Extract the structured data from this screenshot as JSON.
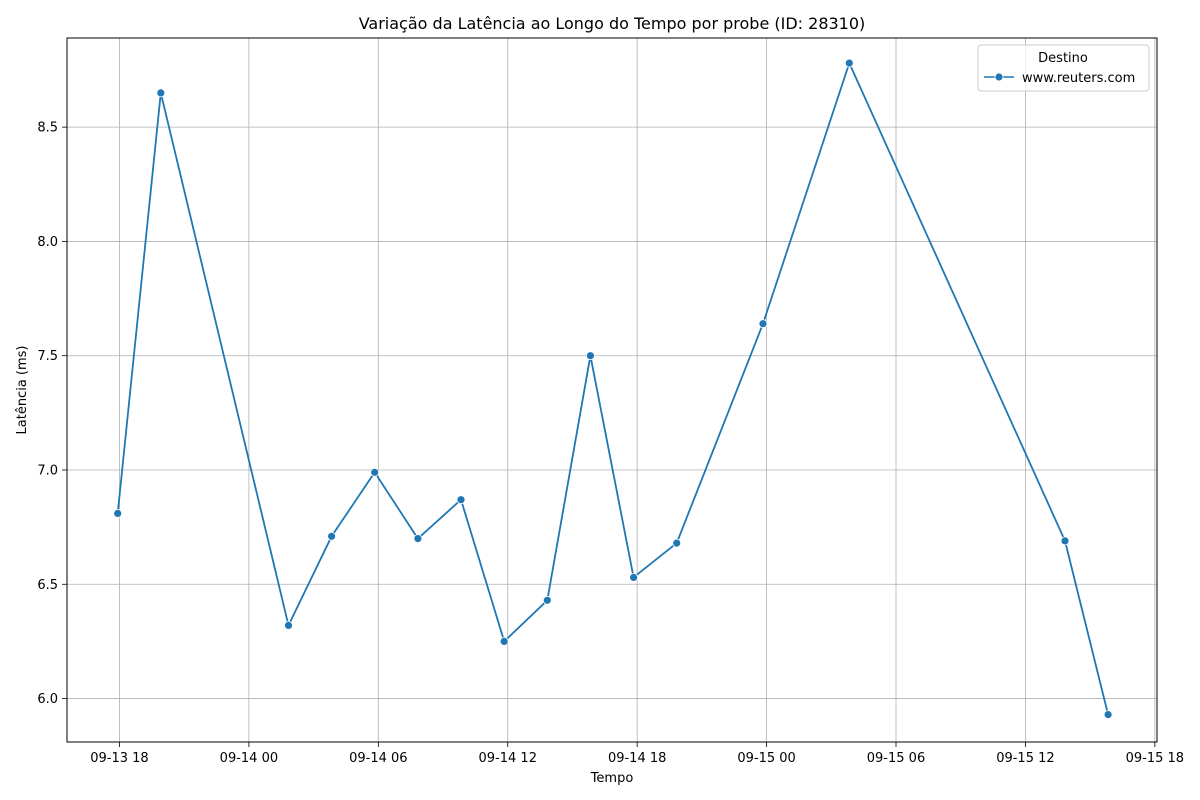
{
  "chart_data": {
    "type": "line",
    "title": "Variação da Latência ao Longo do Tempo por probe (ID: 28310)",
    "xlabel": "Tempo",
    "ylabel": "Latência (ms)",
    "xlim": [
      "2023-09-13 15:34",
      "2023-09-15 18:06"
    ],
    "ylim": [
      5.81,
      8.89
    ],
    "x_ticks": [
      "09-13 18",
      "09-14 00",
      "09-14 06",
      "09-14 12",
      "09-14 18",
      "09-15 00",
      "09-15 06",
      "09-15 12",
      "09-15 18"
    ],
    "y_ticks": [
      "6.0",
      "6.5",
      "7.0",
      "7.5",
      "8.0",
      "8.5"
    ],
    "grid": true,
    "legend": {
      "title": "Destino",
      "position": "top-right"
    },
    "series": [
      {
        "name": "www.reuters.com",
        "color": "#1f77b4",
        "marker": "circle",
        "points": [
          {
            "x": "2023-09-13 17:55",
            "y": 6.81
          },
          {
            "x": "2023-09-13 19:55",
            "y": 8.65
          },
          {
            "x": "2023-09-14 01:50",
            "y": 6.32
          },
          {
            "x": "2023-09-14 03:50",
            "y": 6.71
          },
          {
            "x": "2023-09-14 05:50",
            "y": 6.99
          },
          {
            "x": "2023-09-14 07:50",
            "y": 6.7
          },
          {
            "x": "2023-09-14 09:50",
            "y": 6.87
          },
          {
            "x": "2023-09-14 11:50",
            "y": 6.25
          },
          {
            "x": "2023-09-14 13:50",
            "y": 6.43
          },
          {
            "x": "2023-09-14 15:50",
            "y": 7.5
          },
          {
            "x": "2023-09-14 17:50",
            "y": 6.53
          },
          {
            "x": "2023-09-14 19:50",
            "y": 6.68
          },
          {
            "x": "2023-09-14 23:50",
            "y": 7.64
          },
          {
            "x": "2023-09-15 03:50",
            "y": 8.78
          },
          {
            "x": "2023-09-15 13:50",
            "y": 6.69
          },
          {
            "x": "2023-09-15 15:50",
            "y": 5.93
          }
        ]
      }
    ]
  }
}
